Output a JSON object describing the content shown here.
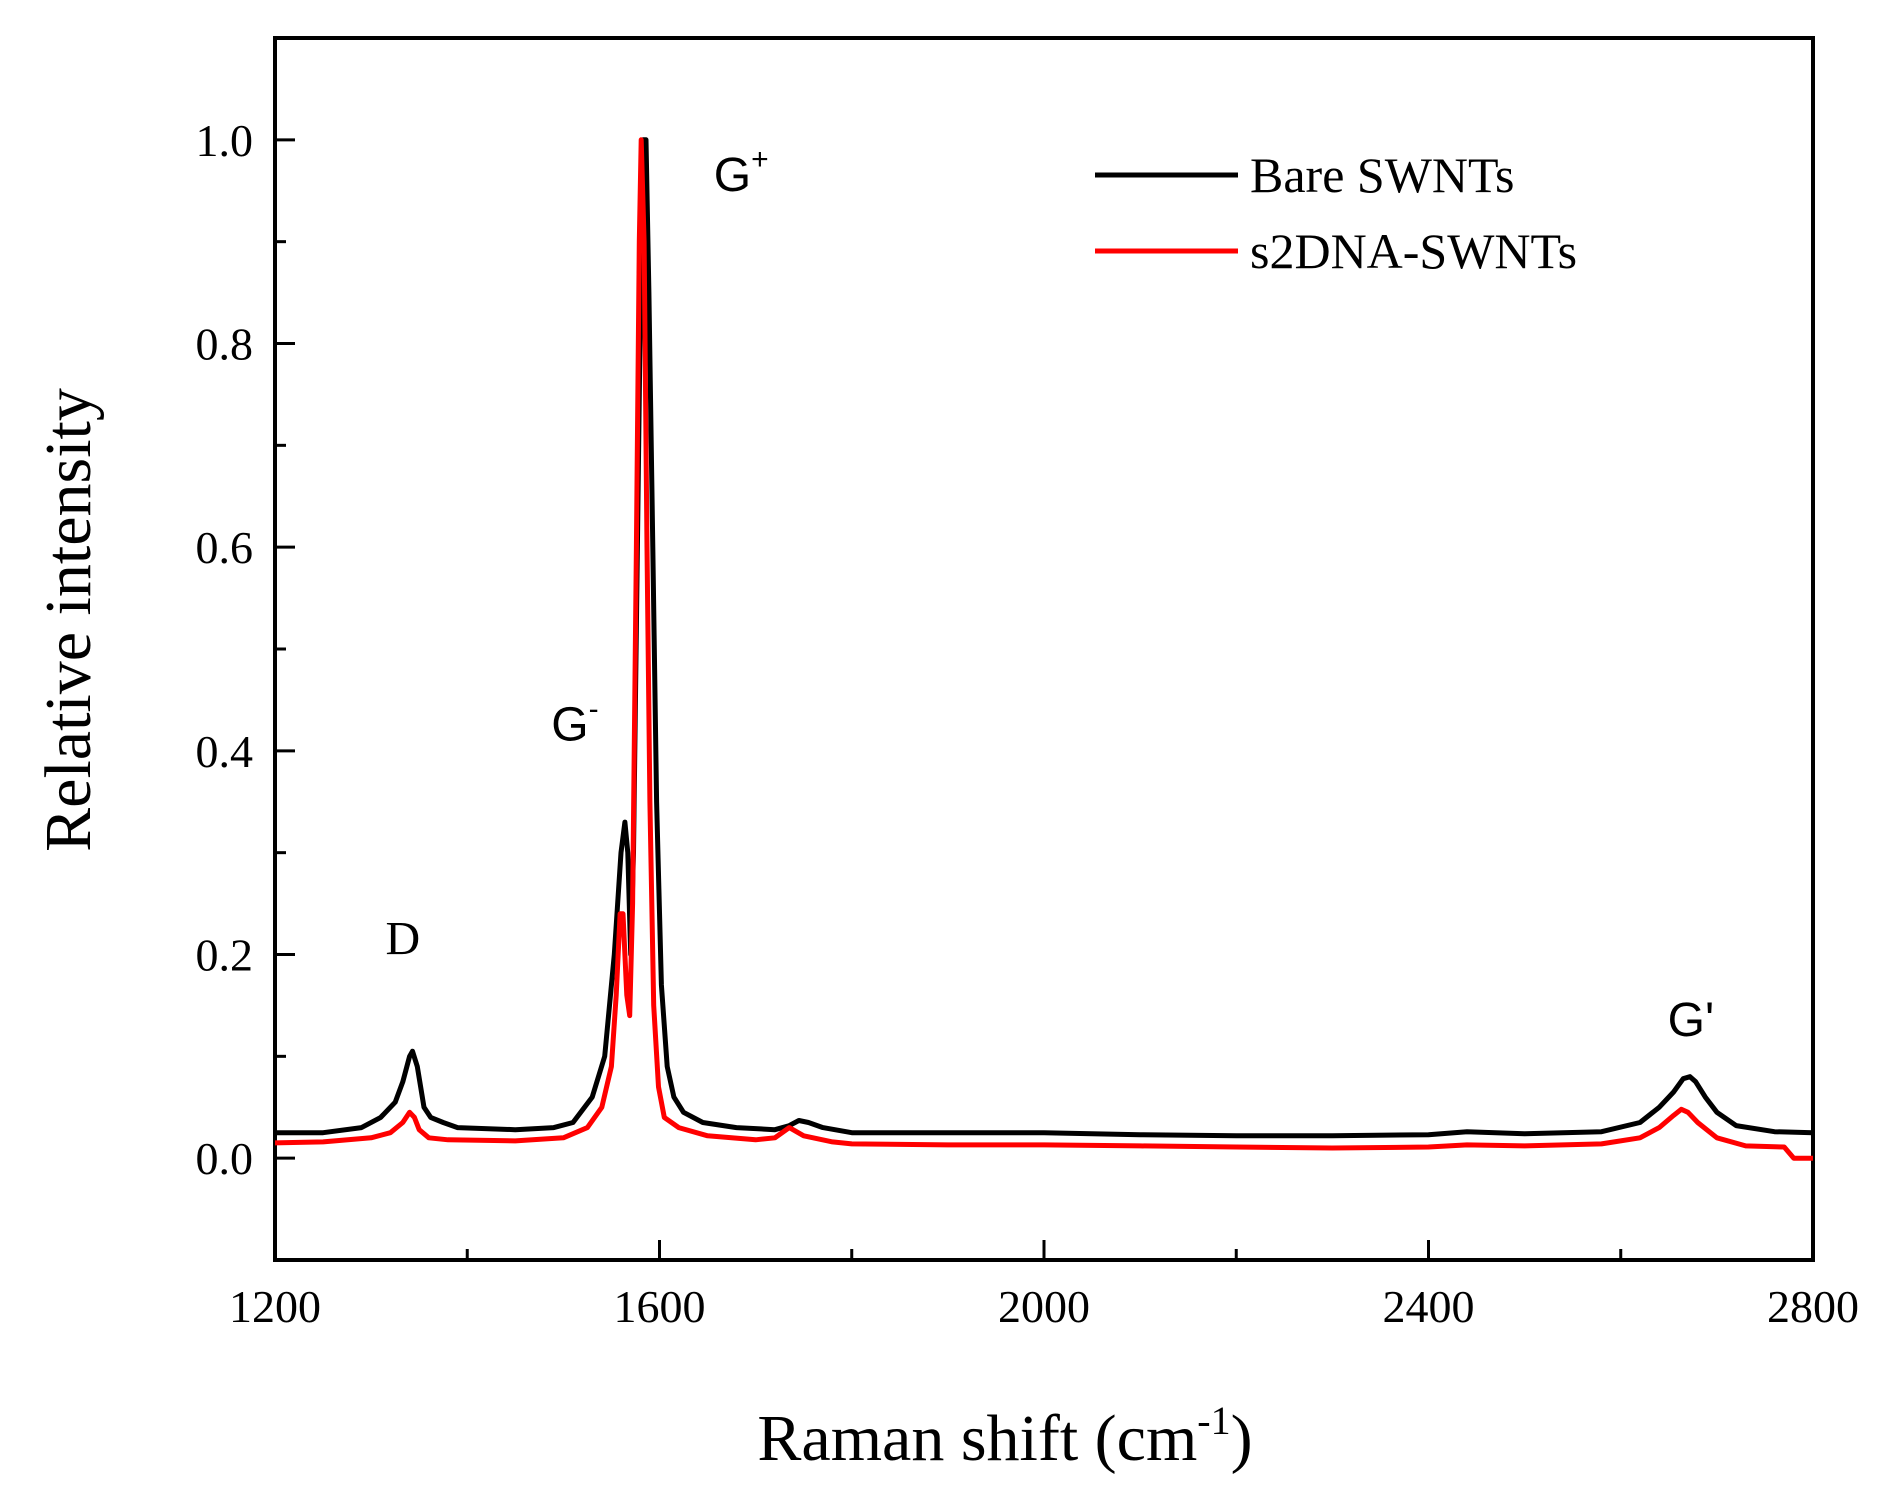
{
  "chart_data": {
    "type": "line",
    "xlabel": "Raman shift (cm",
    "xlabel_sup": "-1",
    "xlabel_tail": ")",
    "ylabel": "Relative intensity",
    "xlim": [
      1200,
      2800
    ],
    "ylim": [
      -0.1,
      1.1
    ],
    "x_ticks": [
      1200,
      1600,
      2000,
      2400,
      2800
    ],
    "x_tick_labels": [
      "1200",
      "1600",
      "2000",
      "2400",
      "2800"
    ],
    "x_minor_ticks": [
      1400,
      1800,
      2200,
      2600
    ],
    "y_ticks": [
      0.0,
      0.2,
      0.4,
      0.6,
      0.8,
      1.0
    ],
    "y_tick_labels": [
      "0.0",
      "0.2",
      "0.4",
      "0.6",
      "0.8",
      "1.0"
    ],
    "y_minor_ticks": [
      0.1,
      0.3,
      0.5,
      0.7,
      0.9
    ],
    "legend_position": "top-right",
    "series": [
      {
        "name": "Bare SWNTs",
        "color": "#000000",
        "points": [
          [
            1200,
            0.025
          ],
          [
            1250,
            0.025
          ],
          [
            1290,
            0.03
          ],
          [
            1310,
            0.04
          ],
          [
            1325,
            0.055
          ],
          [
            1333,
            0.075
          ],
          [
            1340,
            0.1
          ],
          [
            1343,
            0.105
          ],
          [
            1348,
            0.09
          ],
          [
            1355,
            0.05
          ],
          [
            1362,
            0.04
          ],
          [
            1375,
            0.035
          ],
          [
            1390,
            0.03
          ],
          [
            1450,
            0.028
          ],
          [
            1490,
            0.03
          ],
          [
            1510,
            0.035
          ],
          [
            1530,
            0.06
          ],
          [
            1543,
            0.1
          ],
          [
            1553,
            0.2
          ],
          [
            1560,
            0.3
          ],
          [
            1564,
            0.33
          ],
          [
            1567,
            0.3
          ],
          [
            1570,
            0.2
          ],
          [
            1573,
            0.3
          ],
          [
            1577,
            0.6
          ],
          [
            1581,
            0.9
          ],
          [
            1583,
            1.0
          ],
          [
            1586,
            1.0
          ],
          [
            1589,
            0.85
          ],
          [
            1593,
            0.6
          ],
          [
            1597,
            0.35
          ],
          [
            1602,
            0.17
          ],
          [
            1608,
            0.09
          ],
          [
            1615,
            0.06
          ],
          [
            1625,
            0.045
          ],
          [
            1645,
            0.035
          ],
          [
            1680,
            0.03
          ],
          [
            1720,
            0.028
          ],
          [
            1735,
            0.032
          ],
          [
            1745,
            0.037
          ],
          [
            1755,
            0.035
          ],
          [
            1770,
            0.03
          ],
          [
            1800,
            0.025
          ],
          [
            1900,
            0.025
          ],
          [
            2000,
            0.025
          ],
          [
            2100,
            0.023
          ],
          [
            2200,
            0.022
          ],
          [
            2300,
            0.022
          ],
          [
            2400,
            0.023
          ],
          [
            2440,
            0.026
          ],
          [
            2500,
            0.024
          ],
          [
            2580,
            0.026
          ],
          [
            2620,
            0.035
          ],
          [
            2640,
            0.05
          ],
          [
            2655,
            0.065
          ],
          [
            2665,
            0.078
          ],
          [
            2672,
            0.08
          ],
          [
            2678,
            0.075
          ],
          [
            2688,
            0.06
          ],
          [
            2700,
            0.045
          ],
          [
            2720,
            0.032
          ],
          [
            2760,
            0.026
          ],
          [
            2800,
            0.025
          ]
        ]
      },
      {
        "name": "s2DNA-SWNTs",
        "color": "#ff0000",
        "points": [
          [
            1200,
            0.015
          ],
          [
            1250,
            0.016
          ],
          [
            1300,
            0.02
          ],
          [
            1320,
            0.025
          ],
          [
            1333,
            0.035
          ],
          [
            1340,
            0.045
          ],
          [
            1345,
            0.04
          ],
          [
            1350,
            0.028
          ],
          [
            1360,
            0.02
          ],
          [
            1380,
            0.018
          ],
          [
            1450,
            0.017
          ],
          [
            1500,
            0.02
          ],
          [
            1525,
            0.03
          ],
          [
            1540,
            0.05
          ],
          [
            1550,
            0.09
          ],
          [
            1555,
            0.16
          ],
          [
            1559,
            0.24
          ],
          [
            1562,
            0.24
          ],
          [
            1566,
            0.16
          ],
          [
            1569,
            0.14
          ],
          [
            1572,
            0.25
          ],
          [
            1576,
            0.6
          ],
          [
            1579,
            0.9
          ],
          [
            1581,
            1.0
          ],
          [
            1584,
            0.9
          ],
          [
            1587,
            0.6
          ],
          [
            1590,
            0.35
          ],
          [
            1594,
            0.15
          ],
          [
            1599,
            0.07
          ],
          [
            1605,
            0.04
          ],
          [
            1620,
            0.03
          ],
          [
            1650,
            0.022
          ],
          [
            1700,
            0.018
          ],
          [
            1720,
            0.02
          ],
          [
            1735,
            0.03
          ],
          [
            1750,
            0.022
          ],
          [
            1780,
            0.016
          ],
          [
            1800,
            0.014
          ],
          [
            1900,
            0.013
          ],
          [
            2000,
            0.013
          ],
          [
            2100,
            0.012
          ],
          [
            2200,
            0.011
          ],
          [
            2300,
            0.01
          ],
          [
            2400,
            0.011
          ],
          [
            2440,
            0.013
          ],
          [
            2500,
            0.012
          ],
          [
            2580,
            0.014
          ],
          [
            2620,
            0.02
          ],
          [
            2640,
            0.03
          ],
          [
            2655,
            0.042
          ],
          [
            2663,
            0.048
          ],
          [
            2670,
            0.045
          ],
          [
            2680,
            0.035
          ],
          [
            2700,
            0.02
          ],
          [
            2730,
            0.012
          ],
          [
            2770,
            0.011
          ],
          [
            2780,
            0.0
          ],
          [
            2800,
            0.0
          ]
        ]
      }
    ],
    "annotations": [
      {
        "text": "D",
        "sup": "",
        "x": 1333,
        "y": 0.2,
        "style": "serif"
      },
      {
        "text": "G",
        "sup": "-",
        "x": 1512,
        "y": 0.41,
        "style": "sans"
      },
      {
        "text": "G",
        "sup": "+",
        "x": 1685,
        "y": 0.95,
        "style": "sans"
      },
      {
        "text": "G'",
        "sup": "",
        "x": 2673,
        "y": 0.12,
        "style": "sans"
      }
    ]
  }
}
